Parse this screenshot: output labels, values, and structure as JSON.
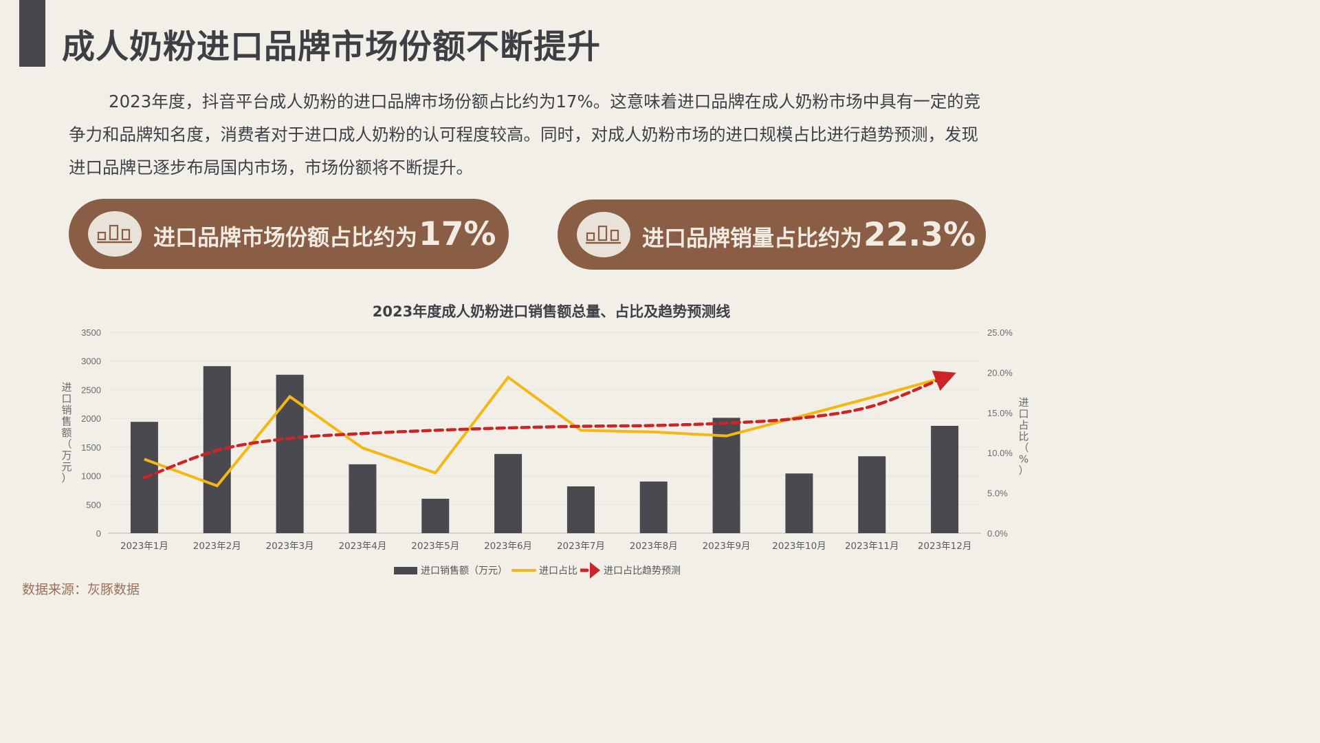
{
  "page": {
    "title": "成人奶粉进口品牌市场份额不断提升",
    "intro": "2023年度，抖音平台成人奶粉的进口品牌市场份额占比约为17%。这意味着进口品牌在成人奶粉市场中具有一定的竞争力和品牌知名度，消费者对于进口成人奶粉的认可程度较高。同时，对成人奶粉市场的进口规模占比进行趋势预测，发现进口品牌已逐步布局国内市场，市场份额将不断提升。",
    "source": "数据来源：灰豚数据"
  },
  "highlights": [
    {
      "icon": "bar-chart-icon",
      "label": "进口品牌市场份额占比约为",
      "value": "17%"
    },
    {
      "icon": "bar-chart-icon",
      "label": "进口品牌销量占比约为",
      "value": "22.3%"
    }
  ],
  "colors": {
    "background": "#f2efe9",
    "accent_brown": "#8a5d45",
    "bar": "#49494f",
    "share_line": "#f5b811",
    "trend_line": "#cc2427",
    "text_dark": "#3f3f45",
    "source_text": "#9a7059"
  },
  "chart_data": {
    "type": "bar",
    "title": "2023年度成人奶粉进口销售额总量、占比及趋势预测线",
    "xlabel": "",
    "ylabel": "进口销售额（万元）",
    "ylabel_right": "进口占比（%）",
    "ylim": [
      0,
      3500
    ],
    "ylim_right": [
      0,
      25
    ],
    "yticks": [
      "0",
      "500",
      "1000",
      "1500",
      "2000",
      "2500",
      "3000",
      "3500"
    ],
    "yticks_right": [
      "0.0%",
      "5.0%",
      "10.0%",
      "15.0%",
      "20.0%",
      "25.0%"
    ],
    "grid": true,
    "legend_position": "bottom",
    "categories": [
      "2023年1月",
      "2023年2月",
      "2023年3月",
      "2023年4月",
      "2023年5月",
      "2023年6月",
      "2023年7月",
      "2023年8月",
      "2023年9月",
      "2023年10月",
      "2023年11月",
      "2023年12月"
    ],
    "series": [
      {
        "name": "进口销售额（万元）",
        "type": "bar",
        "axis": "left",
        "values": [
          1940,
          2910,
          2760,
          1200,
          600,
          1380,
          815,
          900,
          2010,
          1040,
          1340,
          1870
        ]
      },
      {
        "name": "进口占比",
        "type": "line",
        "axis": "right",
        "unit": "%",
        "values": [
          9.2,
          5.9,
          17.0,
          10.6,
          7.5,
          19.4,
          12.8,
          12.6,
          12.1,
          14.5,
          16.9,
          19.4
        ]
      },
      {
        "name": "进口占比趋势预测",
        "type": "line-dashed-arrow",
        "axis": "right",
        "unit": "%",
        "values": [
          6.9,
          10.3,
          11.8,
          12.4,
          12.8,
          13.1,
          13.3,
          13.4,
          13.7,
          14.3,
          15.8,
          19.4
        ]
      }
    ]
  }
}
